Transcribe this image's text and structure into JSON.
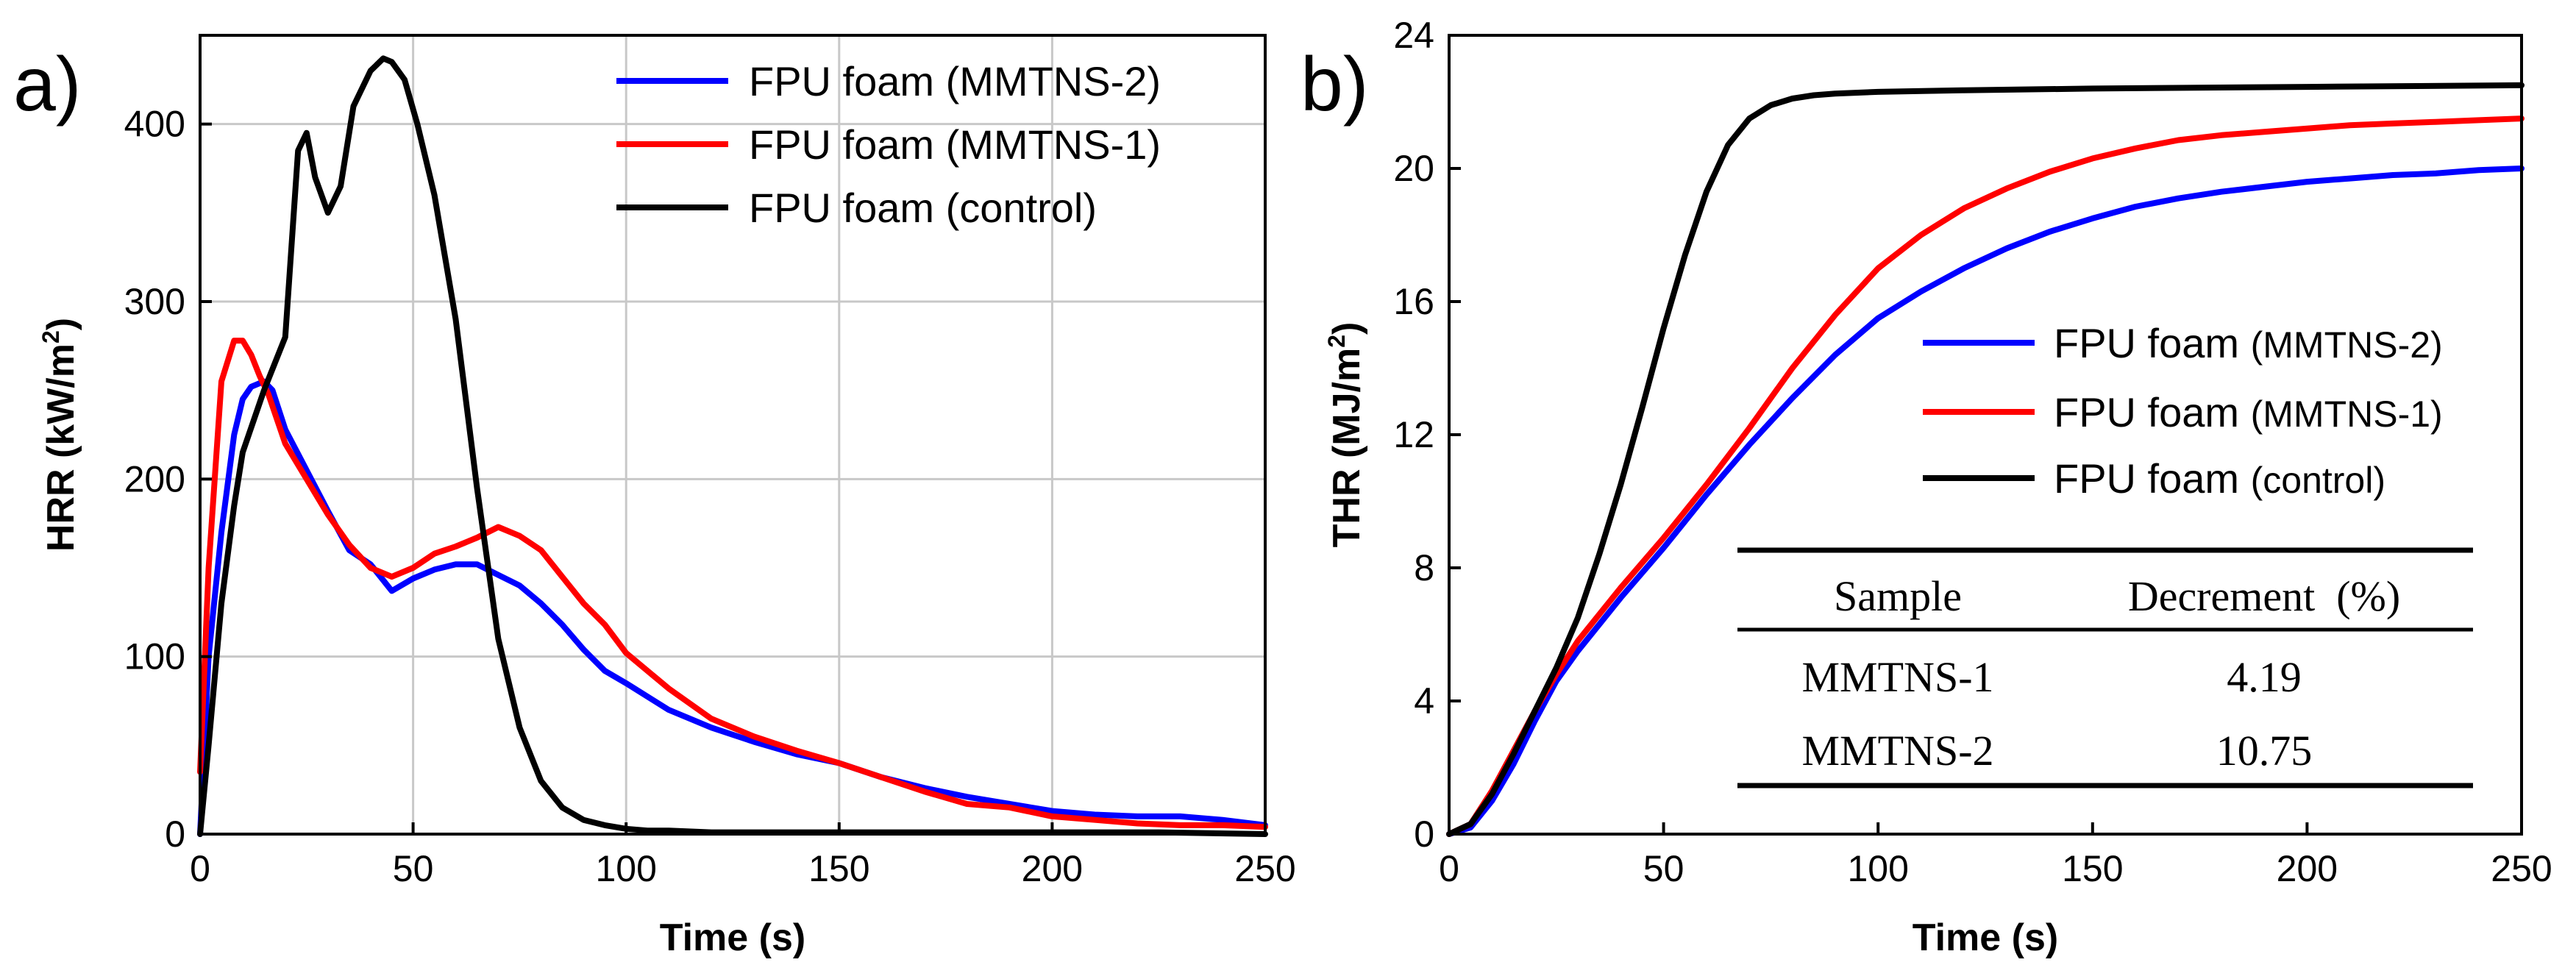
{
  "chart_data": [
    {
      "panel_label": "a)",
      "type": "line",
      "xlabel": "Time (s)",
      "ylabel": "HRR (kW/m",
      "ylabel_sup": "2",
      "ylabel_tail": ")",
      "xlim": [
        0,
        250
      ],
      "ylim": [
        0,
        450
      ],
      "xticks": [
        "0",
        "50",
        "100",
        "150",
        "200",
        "250"
      ],
      "yticks": [
        "0",
        "100",
        "200",
        "300",
        "400"
      ],
      "grid": true,
      "legend_position": "top-right",
      "series": [
        {
          "name": "FPU foam (MMTNS-2)",
          "legend_main": "FPU foam",
          "legend_paren": "(MMTNS-2)",
          "color": "#0000ff",
          "x": [
            0,
            2,
            5,
            8,
            10,
            12,
            15,
            17,
            20,
            25,
            30,
            35,
            40,
            45,
            50,
            55,
            60,
            65,
            70,
            75,
            80,
            85,
            90,
            95,
            100,
            110,
            120,
            130,
            140,
            150,
            160,
            170,
            180,
            190,
            200,
            210,
            220,
            230,
            240,
            250
          ],
          "y": [
            0,
            100,
            170,
            225,
            245,
            252,
            255,
            250,
            228,
            205,
            182,
            160,
            152,
            137,
            144,
            149,
            152,
            152,
            146,
            140,
            130,
            118,
            104,
            92,
            85,
            70,
            60,
            52,
            45,
            40,
            32,
            26,
            21,
            17,
            13,
            11,
            10,
            10,
            8,
            5
          ]
        },
        {
          "name": "FPU foam (MMTNS-1)",
          "legend_main": "FPU foam",
          "legend_paren": "(MMTNS-1)",
          "color": "#ff0000",
          "x": [
            0,
            2,
            5,
            8,
            10,
            12,
            14,
            16,
            20,
            25,
            30,
            35,
            40,
            45,
            50,
            55,
            60,
            65,
            70,
            75,
            80,
            85,
            90,
            95,
            100,
            110,
            120,
            130,
            140,
            150,
            160,
            170,
            180,
            190,
            200,
            210,
            220,
            230,
            240,
            250
          ],
          "y": [
            35,
            150,
            255,
            278,
            278,
            270,
            258,
            248,
            220,
            200,
            180,
            163,
            150,
            145,
            150,
            158,
            162,
            167,
            173,
            168,
            160,
            145,
            130,
            118,
            102,
            82,
            65,
            55,
            47,
            40,
            32,
            24,
            17,
            15,
            10,
            8,
            6,
            5,
            5,
            4
          ]
        },
        {
          "name": "FPU foam (control)",
          "legend_main": "FPU foam",
          "legend_paren": "(control)",
          "color": "#000000",
          "x": [
            0,
            2,
            5,
            8,
            10,
            15,
            20,
            23,
            25,
            27,
            30,
            33,
            36,
            40,
            43,
            45,
            48,
            51,
            55,
            60,
            65,
            70,
            75,
            80,
            85,
            90,
            95,
            100,
            105,
            110,
            120,
            130,
            150,
            175,
            200,
            225,
            250
          ],
          "y": [
            0,
            50,
            130,
            185,
            215,
            250,
            280,
            385,
            395,
            370,
            350,
            365,
            410,
            430,
            437,
            435,
            425,
            400,
            360,
            290,
            195,
            110,
            60,
            30,
            15,
            8,
            5,
            3,
            2,
            2,
            1,
            1,
            1,
            1,
            1,
            1,
            0
          ]
        }
      ]
    },
    {
      "panel_label": "b)",
      "type": "line",
      "xlabel": "Time (s)",
      "ylabel": "THR (MJ/m",
      "ylabel_sup": "2",
      "ylabel_tail": ")",
      "xlim": [
        0,
        250
      ],
      "ylim": [
        0,
        24
      ],
      "xticks": [
        "0",
        "50",
        "100",
        "150",
        "200",
        "250"
      ],
      "yticks": [
        "0",
        "4",
        "8",
        "12",
        "16",
        "20",
        "24"
      ],
      "grid": false,
      "legend_position": "middle-right",
      "series": [
        {
          "name": "FPU foam (MMTNS-2)",
          "legend_main": "FPU foam",
          "legend_paren": "(MMTNS-2)",
          "color": "#0000ff",
          "x": [
            0,
            5,
            10,
            15,
            20,
            25,
            30,
            40,
            50,
            60,
            70,
            80,
            90,
            100,
            110,
            120,
            130,
            140,
            150,
            160,
            170,
            180,
            190,
            200,
            210,
            220,
            230,
            240,
            250
          ],
          "y": [
            0,
            0.2,
            1.0,
            2.1,
            3.4,
            4.6,
            5.5,
            7.1,
            8.6,
            10.2,
            11.7,
            13.1,
            14.4,
            15.5,
            16.3,
            17.0,
            17.6,
            18.1,
            18.5,
            18.85,
            19.1,
            19.3,
            19.45,
            19.6,
            19.7,
            19.8,
            19.85,
            19.95,
            20.0
          ]
        },
        {
          "name": "FPU foam (MMTNS-1)",
          "legend_main": "FPU foam",
          "legend_paren": "(MMTNS-1)",
          "color": "#ff0000",
          "x": [
            0,
            5,
            10,
            15,
            20,
            25,
            30,
            40,
            50,
            60,
            70,
            80,
            90,
            100,
            110,
            120,
            130,
            140,
            150,
            160,
            170,
            180,
            190,
            200,
            210,
            220,
            230,
            240,
            250
          ],
          "y": [
            0,
            0.3,
            1.3,
            2.5,
            3.7,
            4.8,
            5.8,
            7.4,
            8.9,
            10.5,
            12.2,
            14.0,
            15.6,
            17.0,
            18.0,
            18.8,
            19.4,
            19.9,
            20.3,
            20.6,
            20.85,
            21.0,
            21.1,
            21.2,
            21.3,
            21.35,
            21.4,
            21.45,
            21.5
          ]
        },
        {
          "name": "FPU foam (control)",
          "legend_main": "FPU foam",
          "legend_paren": "(control)",
          "color": "#000000",
          "x": [
            0,
            5,
            10,
            15,
            20,
            25,
            30,
            35,
            40,
            45,
            50,
            55,
            60,
            65,
            70,
            75,
            80,
            85,
            90,
            100,
            120,
            150,
            200,
            250
          ],
          "y": [
            0,
            0.3,
            1.2,
            2.4,
            3.7,
            5.0,
            6.5,
            8.4,
            10.5,
            12.8,
            15.2,
            17.4,
            19.3,
            20.7,
            21.5,
            21.9,
            22.1,
            22.2,
            22.25,
            22.3,
            22.35,
            22.4,
            22.45,
            22.5
          ]
        }
      ],
      "table": {
        "headers": [
          "Sample",
          "Decrement  (%)"
        ],
        "rows": [
          [
            "MMTNS-1",
            "4.19"
          ],
          [
            "MMTNS-2",
            "10.75"
          ]
        ]
      }
    }
  ]
}
